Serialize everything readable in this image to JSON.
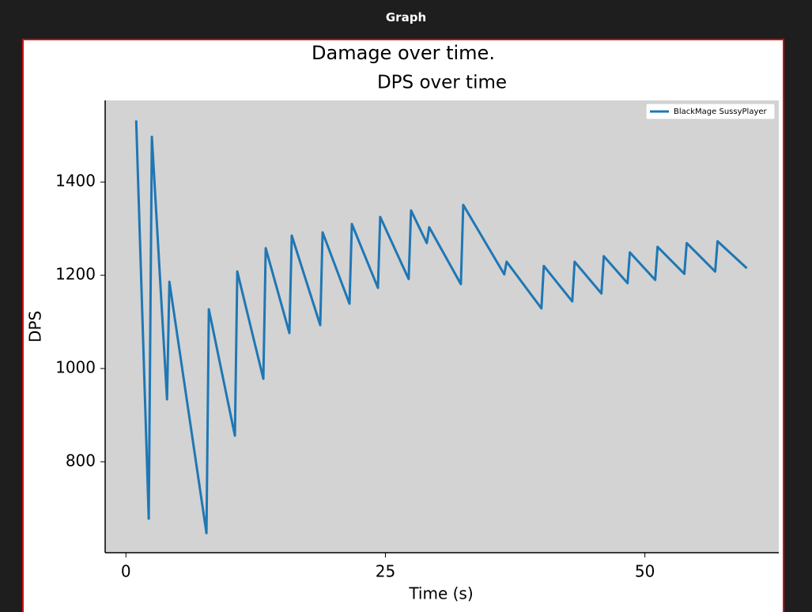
{
  "window_title": "Graph",
  "chart_data": {
    "type": "line",
    "suptitle": "Damage over time.",
    "title": "DPS over time",
    "x_label": "Time (s)",
    "y_label": "DPS",
    "x": [
      0.99,
      2.2,
      2.5,
      3.96,
      4.19,
      7.76,
      7.99,
      10.5,
      10.73,
      13.24,
      13.47,
      15.75,
      15.98,
      18.72,
      18.95,
      21.54,
      21.77,
      24.28,
      24.5,
      27.24,
      27.47,
      28.99,
      29.22,
      32.27,
      32.5,
      36.45,
      36.68,
      40.03,
      40.26,
      43.0,
      43.23,
      45.81,
      46.04,
      48.33,
      48.55,
      50.99,
      51.22,
      53.8,
      54.03,
      56.77,
      57.0,
      59.82
    ],
    "series": [
      {
        "name": "BlackMage SussyPlayer",
        "color": "#1f77b4",
        "values": [
          1532,
          678,
          1497,
          934,
          1186,
          647,
          1127,
          856,
          1208,
          978,
          1258,
          1076,
          1285,
          1093,
          1292,
          1139,
          1310,
          1173,
          1325,
          1192,
          1339,
          1269,
          1303,
          1181,
          1351,
          1202,
          1229,
          1129,
          1220,
          1144,
          1229,
          1161,
          1241,
          1183,
          1249,
          1190,
          1261,
          1203,
          1269,
          1208,
          1273,
          1215
        ]
      }
    ],
    "xlim": [
      -2,
      62.9
    ],
    "xticks": [
      0,
      25,
      50
    ],
    "ylim": [
      605,
      1575
    ],
    "yticks": [
      800,
      1000,
      1200,
      1400
    ],
    "background": "#d3d3d3",
    "legend": "upper-right",
    "grid": false
  }
}
